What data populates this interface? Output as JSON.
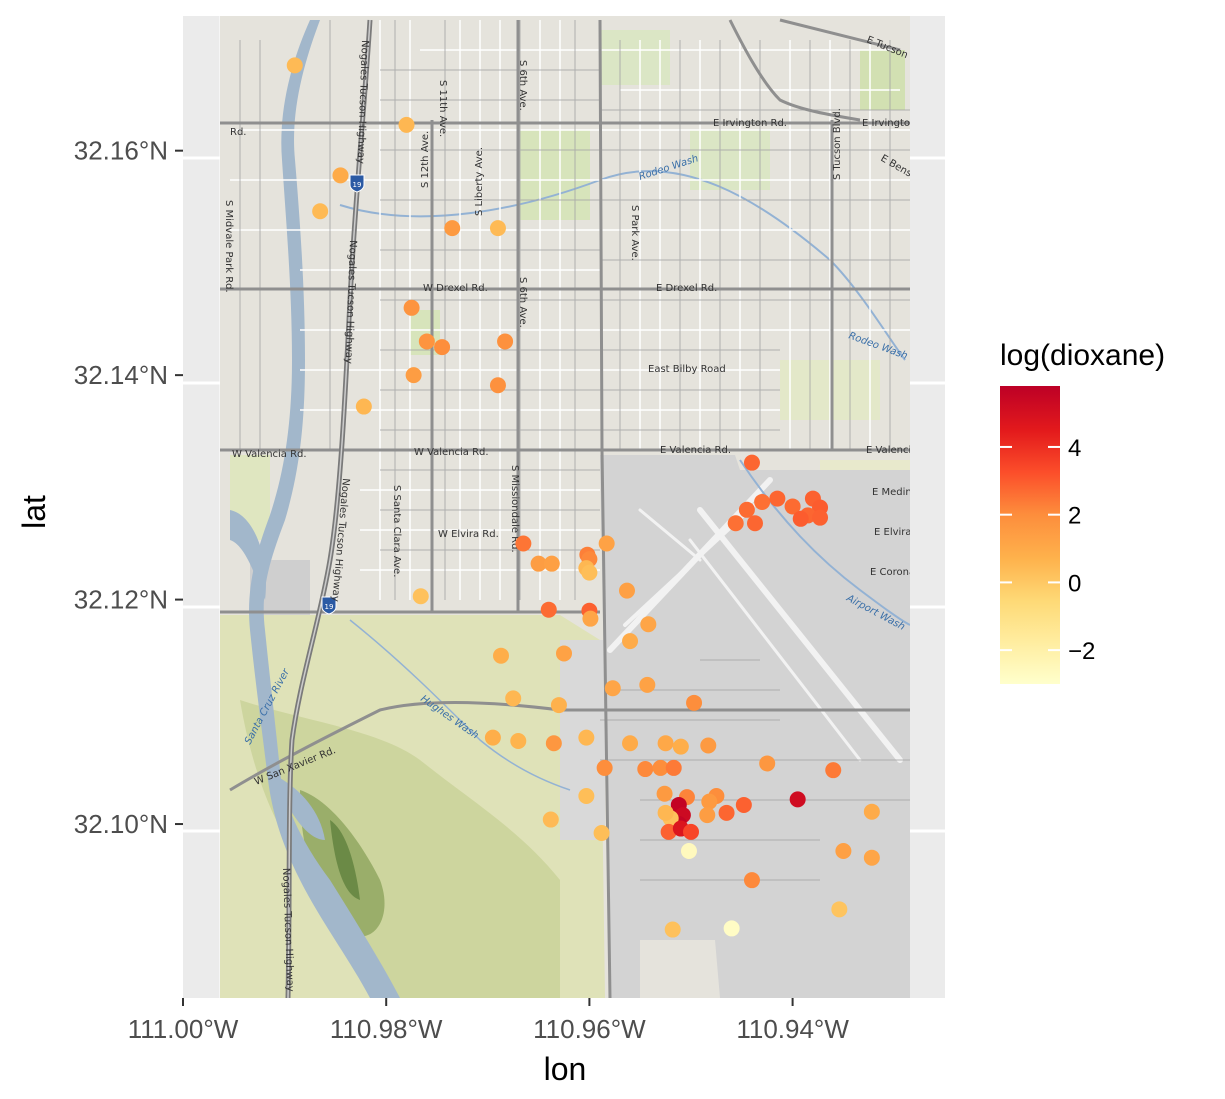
{
  "chart_data": {
    "type": "scatter",
    "xlabel": "lon",
    "ylabel": "lat",
    "xlim": [
      -111.0,
      -110.925
    ],
    "ylim": [
      32.0845,
      32.172
    ],
    "x_ticks": [
      {
        "value": -111.0,
        "label": "111.00°W"
      },
      {
        "value": -110.98,
        "label": "110.98°W"
      },
      {
        "value": -110.96,
        "label": "110.96°W"
      },
      {
        "value": -110.94,
        "label": "110.94°W"
      }
    ],
    "y_ticks": [
      {
        "value": 32.1,
        "label": "32.10°N"
      },
      {
        "value": 32.12,
        "label": "32.12°N"
      },
      {
        "value": 32.14,
        "label": "32.14°N"
      },
      {
        "value": 32.16,
        "label": "32.16°N"
      }
    ],
    "legend": {
      "title": "log(dioxane)",
      "placement": "right",
      "range": [
        -3,
        5.8
      ],
      "ticks": [
        {
          "value": 4,
          "label": "4"
        },
        {
          "value": 2,
          "label": "2"
        },
        {
          "value": 0,
          "label": "0"
        },
        {
          "value": -2,
          "label": "−2"
        }
      ],
      "colors": [
        "#ffffcc",
        "#ffeda0",
        "#fed976",
        "#feb24c",
        "#fd8d3c",
        "#fc4e2a",
        "#e31a1c",
        "#bd0026"
      ]
    },
    "points": [
      {
        "lon": -110.989,
        "lat": 32.1676,
        "v": 0.5
      },
      {
        "lon": -110.978,
        "lat": 32.1623,
        "v": 0.6
      },
      {
        "lon": -110.9845,
        "lat": 32.1578,
        "v": 1.0
      },
      {
        "lon": -110.9865,
        "lat": 32.1546,
        "v": 0.5
      },
      {
        "lon": -110.9735,
        "lat": 32.1531,
        "v": 1.6
      },
      {
        "lon": -110.969,
        "lat": 32.1531,
        "v": 0.5
      },
      {
        "lon": -110.9775,
        "lat": 32.146,
        "v": 1.8
      },
      {
        "lon": -110.976,
        "lat": 32.143,
        "v": 1.8
      },
      {
        "lon": -110.9745,
        "lat": 32.1425,
        "v": 2.0
      },
      {
        "lon": -110.9683,
        "lat": 32.143,
        "v": 1.9
      },
      {
        "lon": -110.9773,
        "lat": 32.14,
        "v": 1.5
      },
      {
        "lon": -110.969,
        "lat": 32.1391,
        "v": 1.9
      },
      {
        "lon": -110.9822,
        "lat": 32.1372,
        "v": 0.6
      },
      {
        "lon": -110.9766,
        "lat": 32.1203,
        "v": 0.3
      },
      {
        "lon": -110.944,
        "lat": 32.1322,
        "v": 2.8
      },
      {
        "lon": -110.943,
        "lat": 32.1287,
        "v": 2.6
      },
      {
        "lon": -110.9415,
        "lat": 32.129,
        "v": 2.8
      },
      {
        "lon": -110.94,
        "lat": 32.1283,
        "v": 2.7
      },
      {
        "lon": -110.938,
        "lat": 32.129,
        "v": 2.9
      },
      {
        "lon": -110.9373,
        "lat": 32.1282,
        "v": 3.0
      },
      {
        "lon": -110.9385,
        "lat": 32.1275,
        "v": 2.8
      },
      {
        "lon": -110.9373,
        "lat": 32.1273,
        "v": 2.9
      },
      {
        "lon": -110.9392,
        "lat": 32.1272,
        "v": 3.0
      },
      {
        "lon": -110.9445,
        "lat": 32.128,
        "v": 2.7
      },
      {
        "lon": -110.9437,
        "lat": 32.1268,
        "v": 2.8
      },
      {
        "lon": -110.9456,
        "lat": 32.1268,
        "v": 2.6
      },
      {
        "lon": -110.9665,
        "lat": 32.125,
        "v": 2.5
      },
      {
        "lon": -110.965,
        "lat": 32.1232,
        "v": 1.5
      },
      {
        "lon": -110.9637,
        "lat": 32.1232,
        "v": 1.4
      },
      {
        "lon": -110.9602,
        "lat": 32.124,
        "v": 2.3
      },
      {
        "lon": -110.96,
        "lat": 32.1236,
        "v": 2.1
      },
      {
        "lon": -110.9603,
        "lat": 32.1228,
        "v": 0.6
      },
      {
        "lon": -110.96,
        "lat": 32.1224,
        "v": 0.4
      },
      {
        "lon": -110.9583,
        "lat": 32.125,
        "v": 1.3
      },
      {
        "lon": -110.964,
        "lat": 32.1191,
        "v": 2.7
      },
      {
        "lon": -110.96,
        "lat": 32.119,
        "v": 2.9
      },
      {
        "lon": -110.9599,
        "lat": 32.1183,
        "v": 1.2
      },
      {
        "lon": -110.9563,
        "lat": 32.1208,
        "v": 1.4
      },
      {
        "lon": -110.9542,
        "lat": 32.1178,
        "v": 1.2
      },
      {
        "lon": -110.956,
        "lat": 32.1163,
        "v": 1.0
      },
      {
        "lon": -110.9625,
        "lat": 32.1152,
        "v": 1.3
      },
      {
        "lon": -110.9687,
        "lat": 32.115,
        "v": 0.9
      },
      {
        "lon": -110.9543,
        "lat": 32.1124,
        "v": 1.3
      },
      {
        "lon": -110.9577,
        "lat": 32.1121,
        "v": 1.2
      },
      {
        "lon": -110.9675,
        "lat": 32.1112,
        "v": 0.6
      },
      {
        "lon": -110.963,
        "lat": 32.1106,
        "v": 0.8
      },
      {
        "lon": -110.9497,
        "lat": 32.1108,
        "v": 2.0
      },
      {
        "lon": -110.9695,
        "lat": 32.1077,
        "v": 0.9
      },
      {
        "lon": -110.967,
        "lat": 32.1074,
        "v": 0.7
      },
      {
        "lon": -110.9635,
        "lat": 32.1072,
        "v": 1.7
      },
      {
        "lon": -110.9603,
        "lat": 32.1077,
        "v": 0.6
      },
      {
        "lon": -110.956,
        "lat": 32.1072,
        "v": 1.0
      },
      {
        "lon": -110.9525,
        "lat": 32.1072,
        "v": 1.1
      },
      {
        "lon": -110.951,
        "lat": 32.1069,
        "v": 0.9
      },
      {
        "lon": -110.9483,
        "lat": 32.107,
        "v": 1.6
      },
      {
        "lon": -110.9585,
        "lat": 32.105,
        "v": 2.0
      },
      {
        "lon": -110.9545,
        "lat": 32.1049,
        "v": 2.1
      },
      {
        "lon": -110.953,
        "lat": 32.105,
        "v": 2.0
      },
      {
        "lon": -110.9517,
        "lat": 32.105,
        "v": 2.4
      },
      {
        "lon": -110.9425,
        "lat": 32.1054,
        "v": 1.7
      },
      {
        "lon": -110.936,
        "lat": 32.1048,
        "v": 2.4
      },
      {
        "lon": -110.9603,
        "lat": 32.1025,
        "v": 0.4
      },
      {
        "lon": -110.9526,
        "lat": 32.1027,
        "v": 1.6
      },
      {
        "lon": -110.9504,
        "lat": 32.1024,
        "v": 2.2
      },
      {
        "lon": -110.9475,
        "lat": 32.1025,
        "v": 2.0
      },
      {
        "lon": -110.9482,
        "lat": 32.102,
        "v": 1.6
      },
      {
        "lon": -110.9465,
        "lat": 32.101,
        "v": 2.8
      },
      {
        "lon": -110.9448,
        "lat": 32.1017,
        "v": 2.9
      },
      {
        "lon": -110.9395,
        "lat": 32.1022,
        "v": 5.2
      },
      {
        "lon": -110.9512,
        "lat": 32.1017,
        "v": 5.6
      },
      {
        "lon": -110.9508,
        "lat": 32.1008,
        "v": 5.3
      },
      {
        "lon": -110.9512,
        "lat": 32.1,
        "v": 5.6
      },
      {
        "lon": -110.952,
        "lat": 32.1005,
        "v": 0.3
      },
      {
        "lon": -110.9525,
        "lat": 32.101,
        "v": 0.6
      },
      {
        "lon": -110.9484,
        "lat": 32.1008,
        "v": 1.5
      },
      {
        "lon": -110.9322,
        "lat": 32.1011,
        "v": 1.0
      },
      {
        "lon": -110.9638,
        "lat": 32.1004,
        "v": 0.5
      },
      {
        "lon": -110.9588,
        "lat": 32.0992,
        "v": 0.4
      },
      {
        "lon": -110.9522,
        "lat": 32.0993,
        "v": 2.9
      },
      {
        "lon": -110.951,
        "lat": 32.0996,
        "v": 4.8
      },
      {
        "lon": -110.95,
        "lat": 32.0993,
        "v": 3.5
      },
      {
        "lon": -110.9502,
        "lat": 32.0976,
        "v": -2.6
      },
      {
        "lon": -110.935,
        "lat": 32.0976,
        "v": 1.4
      },
      {
        "lon": -110.9322,
        "lat": 32.097,
        "v": 1.2
      },
      {
        "lon": -110.944,
        "lat": 32.095,
        "v": 2.1
      },
      {
        "lon": -110.9354,
        "lat": 32.0924,
        "v": 0.2
      },
      {
        "lon": -110.9518,
        "lat": 32.0906,
        "v": 0.3
      },
      {
        "lon": -110.946,
        "lat": 32.0907,
        "v": -2.8
      }
    ]
  },
  "map": {
    "labels": {
      "irvington_w": "E Irvington Rd.",
      "irvington_e": "E Irvington",
      "tucson_ben": "E Tucson Ben",
      "benson": "E Bensc",
      "drexel_w": "W Drexel Rd.",
      "drexel_e": "E Drexel Rd.",
      "bilby": "East Bilby Road",
      "valencia_w": "W Valencia Rd.",
      "valencia_mid": "W Valencia Rd.",
      "valencia_e": "E Valencia Rd.",
      "valencia_far": "E Valencia",
      "medina": "E Medina",
      "elvira_w": "W Elvira Rd.",
      "elvira_e": "E Elvira",
      "corona": "E Corona",
      "rodeo_wash": "Rodeo Wash",
      "rodeo_wash_2": "Rodeo Wash",
      "airport_wash": "Airport Wash",
      "hughes_wash": "Hughes Wash",
      "santa_cruz": "Santa Cruz River",
      "san_xavier": "W San Xavier Rd.",
      "nogales_1": "Nogales Tucson Highway",
      "nogales_2": "Nogales Tucson Highway",
      "nogales_3": "Nogales Tucson Highway",
      "nogales_4": "Nogales Tucson Highway",
      "s_12th": "S 12th Ave.",
      "s_11th": "S 11th Ave.",
      "s_6th_n": "S 6th Ave.",
      "s_6th": "S 6th Ave.",
      "s_liberty": "S Liberty Ave.",
      "s_park": "S Park Ave.",
      "s_tucson": "S Tucson Blvd.",
      "s_midvale": "S Midvale Park Rd.",
      "s_santa_clara": "S Santa Clara Ave.",
      "s_missiondale": "S Missiondale Rd.",
      "rd": "Rd.",
      "shield_19": "19"
    }
  }
}
